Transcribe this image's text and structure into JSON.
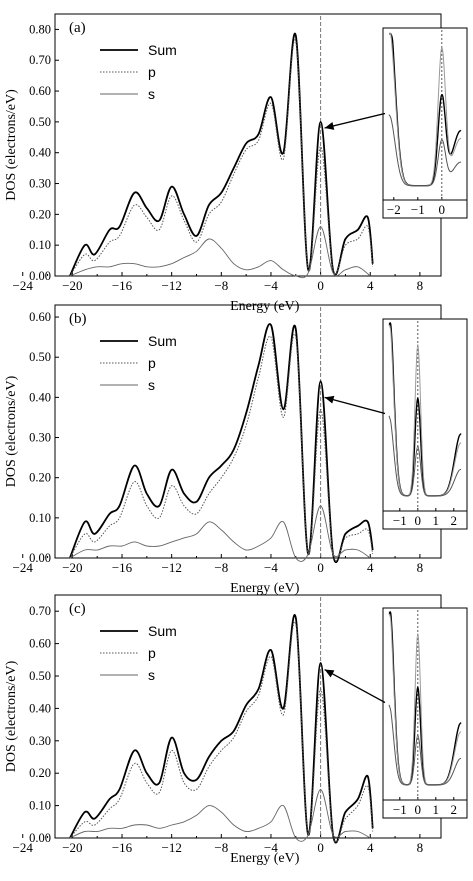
{
  "chart_data": [
    {
      "type": "line",
      "panel_label": "(a)",
      "xlabel": "Energy (eV)",
      "ylabel": "DOS (electrons/eV)",
      "xlim": [
        -24,
        10
      ],
      "ylim": [
        0,
        0.85
      ],
      "x_ticks": [
        "-24",
        "-20",
        "-16",
        "-12",
        "-8",
        "-4",
        "0",
        "4",
        "8"
      ],
      "y_ticks": [
        "0.00",
        "0.10",
        "0.20",
        "0.30",
        "0.40",
        "0.50",
        "0.60",
        "0.70",
        "0.80"
      ],
      "legend_position": "top-left",
      "grid": false,
      "series": [
        {
          "name": "Sum",
          "style": "solid-bold",
          "x": [
            -20.2,
            -19,
            -18.2,
            -17,
            -16.2,
            -15,
            -14,
            -13,
            -12,
            -11,
            -10,
            -9,
            -8,
            -7,
            -6,
            -5,
            -4,
            -3,
            -2,
            -1,
            0,
            1,
            2,
            3,
            3.8,
            4.2
          ],
          "y": [
            0.0,
            0.1,
            0.07,
            0.15,
            0.16,
            0.27,
            0.22,
            0.18,
            0.29,
            0.2,
            0.13,
            0.23,
            0.27,
            0.35,
            0.43,
            0.46,
            0.58,
            0.4,
            0.78,
            0.02,
            0.5,
            0.02,
            0.12,
            0.15,
            0.19,
            0.04
          ]
        },
        {
          "name": "p",
          "style": "dotted",
          "x": [
            -20.2,
            -19,
            -18.2,
            -17,
            -16.2,
            -15,
            -14,
            -13,
            -12,
            -11,
            -10,
            -9,
            -8,
            -7,
            -6,
            -5,
            -4,
            -3,
            -2,
            -1,
            0,
            1,
            2,
            3,
            3.8,
            4.2
          ],
          "y": [
            0.0,
            0.07,
            0.05,
            0.11,
            0.13,
            0.23,
            0.19,
            0.15,
            0.26,
            0.18,
            0.11,
            0.2,
            0.24,
            0.33,
            0.41,
            0.44,
            0.56,
            0.38,
            0.76,
            0.02,
            0.42,
            0.02,
            0.1,
            0.12,
            0.16,
            0.03
          ]
        },
        {
          "name": "s",
          "style": "thin",
          "x": [
            -20.2,
            -19,
            -18,
            -17,
            -16,
            -15,
            -14,
            -13,
            -12,
            -11,
            -10,
            -9,
            -8,
            -7,
            -6,
            -5,
            -4,
            -3,
            -2,
            -1,
            0,
            1,
            2,
            3,
            4
          ],
          "y": [
            0.0,
            0.02,
            0.03,
            0.03,
            0.04,
            0.04,
            0.03,
            0.03,
            0.04,
            0.06,
            0.08,
            0.12,
            0.09,
            0.04,
            0.02,
            0.03,
            0.05,
            0.02,
            0.0,
            0.01,
            0.16,
            0.01,
            0.02,
            0.03,
            0.0
          ]
        }
      ],
      "inset": {
        "x_ticks": [
          "-2",
          "-1",
          "0"
        ],
        "xlim": [
          -2.2,
          0.8
        ]
      }
    },
    {
      "type": "line",
      "panel_label": "(b)",
      "xlabel": "Energy (eV)",
      "ylabel": "DOS (electrons/eV)",
      "xlim": [
        -24,
        10
      ],
      "ylim": [
        0,
        0.63
      ],
      "x_ticks": [
        "-24",
        "-20",
        "-16",
        "-12",
        "-8",
        "-4",
        "0",
        "4",
        "8"
      ],
      "y_ticks": [
        "0.00",
        "0.10",
        "0.20",
        "0.30",
        "0.40",
        "0.50",
        "0.60"
      ],
      "legend_position": "top-left",
      "grid": false,
      "series": [
        {
          "name": "Sum",
          "style": "solid-bold",
          "x": [
            -20.2,
            -19,
            -18.2,
            -17,
            -16.2,
            -15,
            -14,
            -13,
            -12,
            -11,
            -10,
            -9,
            -8,
            -7,
            -6,
            -5,
            -4,
            -3,
            -2,
            -1,
            0,
            1,
            2,
            3,
            3.8,
            4.2
          ],
          "y": [
            0.0,
            0.09,
            0.06,
            0.11,
            0.13,
            0.23,
            0.16,
            0.13,
            0.22,
            0.16,
            0.14,
            0.2,
            0.23,
            0.27,
            0.36,
            0.48,
            0.58,
            0.37,
            0.57,
            0.01,
            0.44,
            0.01,
            0.06,
            0.08,
            0.09,
            0.02
          ]
        },
        {
          "name": "p",
          "style": "dotted",
          "x": [
            -20.2,
            -19,
            -18.2,
            -17,
            -16.2,
            -15,
            -14,
            -13,
            -12,
            -11,
            -10,
            -9,
            -8,
            -7,
            -6,
            -5,
            -4,
            -3,
            -2,
            -1,
            0,
            1,
            2,
            3,
            3.8,
            4.2
          ],
          "y": [
            0.0,
            0.06,
            0.04,
            0.08,
            0.1,
            0.19,
            0.13,
            0.1,
            0.18,
            0.13,
            0.11,
            0.16,
            0.2,
            0.25,
            0.33,
            0.45,
            0.55,
            0.35,
            0.55,
            0.01,
            0.37,
            0.01,
            0.05,
            0.06,
            0.07,
            0.01
          ]
        },
        {
          "name": "s",
          "style": "thin",
          "x": [
            -20.2,
            -19,
            -18,
            -17,
            -16,
            -15,
            -14,
            -13,
            -12,
            -11,
            -10,
            -9,
            -8,
            -7,
            -6,
            -5,
            -4,
            -3,
            -2,
            -1,
            0,
            1,
            2,
            3,
            4
          ],
          "y": [
            0.0,
            0.02,
            0.02,
            0.03,
            0.03,
            0.04,
            0.03,
            0.03,
            0.04,
            0.05,
            0.06,
            0.09,
            0.07,
            0.04,
            0.02,
            0.03,
            0.05,
            0.09,
            0.0,
            0.01,
            0.13,
            0.01,
            0.02,
            0.02,
            0.0
          ]
        }
      ],
      "inset": {
        "x_ticks": [
          "-1",
          "0",
          "1",
          "2"
        ],
        "xlim": [
          -1.6,
          2.4
        ]
      }
    },
    {
      "type": "line",
      "panel_label": "(c)",
      "xlabel": "Energy (eV)",
      "ylabel": "DOS (electrons/eV)",
      "xlim": [
        -24,
        10
      ],
      "ylim": [
        0,
        0.75
      ],
      "x_ticks": [
        "-24",
        "-20",
        "-16",
        "-12",
        "-8",
        "-4",
        "0",
        "4",
        "8"
      ],
      "y_ticks": [
        "0.00",
        "0.10",
        "0.20",
        "0.30",
        "0.40",
        "0.50",
        "0.60",
        "0.70"
      ],
      "legend_position": "top-left",
      "grid": false,
      "series": [
        {
          "name": "Sum",
          "style": "solid-bold",
          "x": [
            -20.2,
            -19,
            -18.2,
            -17,
            -16.2,
            -15,
            -14,
            -13,
            -12,
            -11,
            -10,
            -9,
            -8,
            -7,
            -6,
            -5,
            -4,
            -3,
            -2,
            -1,
            0,
            1,
            2,
            3,
            3.8,
            4.2
          ],
          "y": [
            0.0,
            0.08,
            0.06,
            0.12,
            0.15,
            0.27,
            0.2,
            0.17,
            0.31,
            0.2,
            0.18,
            0.25,
            0.3,
            0.33,
            0.41,
            0.46,
            0.58,
            0.4,
            0.68,
            0.01,
            0.54,
            0.01,
            0.08,
            0.12,
            0.19,
            0.03
          ]
        },
        {
          "name": "p",
          "style": "dotted",
          "x": [
            -20.2,
            -19,
            -18.2,
            -17,
            -16.2,
            -15,
            -14,
            -13,
            -12,
            -11,
            -10,
            -9,
            -8,
            -7,
            -6,
            -5,
            -4,
            -3,
            -2,
            -1,
            0,
            1,
            2,
            3,
            3.8,
            4.2
          ],
          "y": [
            0.0,
            0.05,
            0.04,
            0.09,
            0.12,
            0.23,
            0.17,
            0.14,
            0.27,
            0.17,
            0.15,
            0.22,
            0.27,
            0.31,
            0.39,
            0.44,
            0.56,
            0.38,
            0.66,
            0.01,
            0.46,
            0.01,
            0.06,
            0.1,
            0.16,
            0.02
          ]
        },
        {
          "name": "s",
          "style": "thin",
          "x": [
            -20.2,
            -19,
            -18,
            -17,
            -16,
            -15,
            -14,
            -13,
            -12,
            -11,
            -10,
            -9,
            -8,
            -7,
            -6,
            -5,
            -4,
            -3,
            -2,
            -1,
            0,
            1,
            2,
            3,
            4
          ],
          "y": [
            0.0,
            0.02,
            0.02,
            0.03,
            0.03,
            0.04,
            0.04,
            0.03,
            0.04,
            0.05,
            0.07,
            0.1,
            0.08,
            0.04,
            0.02,
            0.03,
            0.05,
            0.1,
            0.0,
            0.01,
            0.15,
            0.01,
            0.02,
            0.02,
            0.0
          ]
        }
      ],
      "inset": {
        "x_ticks": [
          "-1",
          "0",
          "1",
          "2"
        ],
        "xlim": [
          -1.6,
          2.4
        ]
      }
    }
  ]
}
